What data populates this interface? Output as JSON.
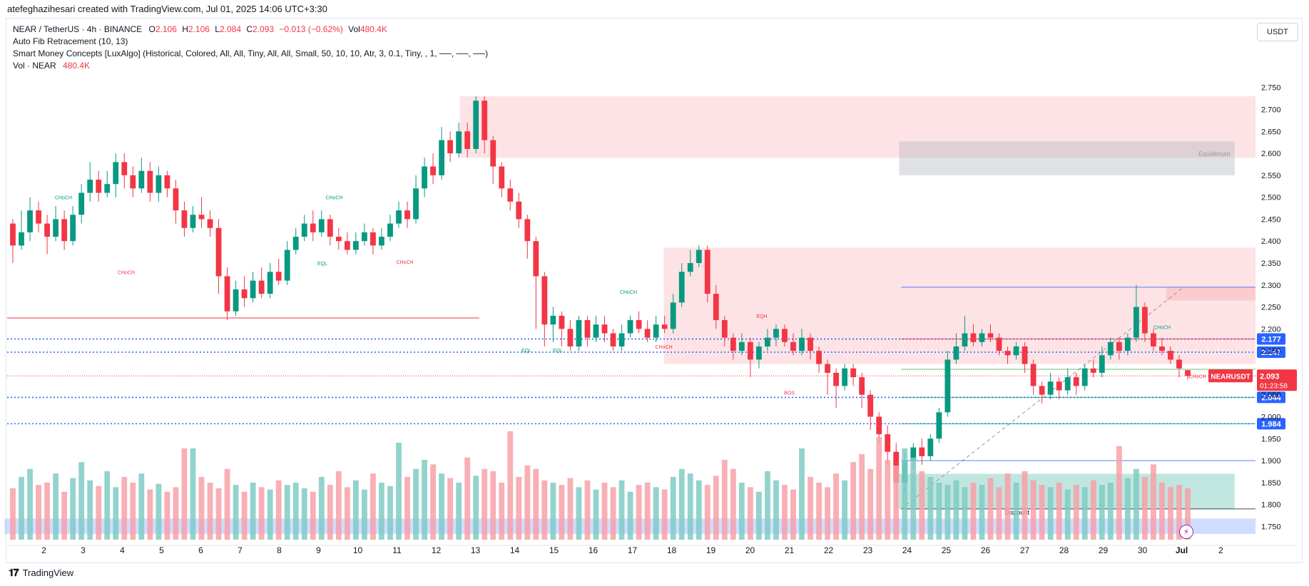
{
  "header": {
    "title": "atefeghazihesari created with TradingView.com, Jul 01, 2025 14:06 UTC+3:30"
  },
  "legend": {
    "symbol_line": "NEAR / TetherUS · 4h · BINANCE",
    "o_label": "O",
    "o_value": "2.106",
    "h_label": "H",
    "h_value": "2.106",
    "l_label": "L",
    "l_value": "2.084",
    "c_label": "C",
    "c_value": "2.093",
    "change": "−0.013 (−0.62%)",
    "vol_label": "Vol",
    "vol_value": "480.4K",
    "fib": "Auto Fib Retracement (10, 13)",
    "smc": "Smart Money Concepts [LuxAlgo] (Historical, Colored, All, All, Tiny, All, All, Small, 50, 10, 10, Atr, 3, 0.1, Tiny, , 1, ──, ──, ──)",
    "vol_line": "Vol · NEAR",
    "vol_line_value": "480.4K"
  },
  "currency": "USDT",
  "branding": "TradingView",
  "colors": {
    "up": "#089981",
    "down": "#f23645",
    "up_vol": "#80cbc4",
    "down_vol": "#f7a1a8",
    "fib_blue": "#2962ff"
  },
  "chart_data": {
    "type": "candlestick",
    "symbol": "NEARUSDT",
    "timeframe": "4h",
    "y_ticks": [
      2.75,
      2.7,
      2.65,
      2.6,
      2.55,
      2.5,
      2.45,
      2.4,
      2.35,
      2.3,
      2.25,
      2.2,
      2.15,
      2.1,
      2.05,
      2.0,
      1.95,
      1.9,
      1.85,
      1.8,
      1.75
    ],
    "y_tick_labels": [
      "2.750",
      "2.700",
      "2.650",
      "2.600",
      "2.550",
      "2.500",
      "2.450",
      "2.400",
      "2.350",
      "2.300",
      "2.250",
      "2.200",
      "2.150",
      "2.100",
      "2.050",
      "2.000",
      "1.950",
      "1.900",
      "1.850",
      "1.800",
      "1.750"
    ],
    "ylim": [
      1.715,
      2.795
    ],
    "x_labels": [
      "2",
      "3",
      "4",
      "5",
      "6",
      "7",
      "8",
      "9",
      "10",
      "11",
      "12",
      "13",
      "14",
      "15",
      "16",
      "17",
      "18",
      "19",
      "20",
      "21",
      "22",
      "23",
      "24",
      "25",
      "26",
      "27",
      "28",
      "29",
      "30",
      "Jul",
      "2"
    ],
    "price_marks": [
      {
        "value": 2.177,
        "label": "2.177",
        "color": "#2962ff"
      },
      {
        "value": 2.147,
        "label": "2.147",
        "color": "#2962ff"
      },
      {
        "value": 2.044,
        "label": "2.044",
        "color": "#2962ff"
      },
      {
        "value": 1.984,
        "label": "1.984",
        "color": "#2962ff"
      }
    ],
    "last_price": {
      "value": 2.093,
      "label": "2.093",
      "countdown": "01:23:58",
      "symbol_tag": "NEARUSDT"
    },
    "zone_labels": {
      "equilibrium": "Equilibrium",
      "discount": "Discount"
    },
    "structure_labels": [
      {
        "text": "CHoCH",
        "color": "#089981",
        "day": 1.5,
        "price": 2.495
      },
      {
        "text": "CHoCH",
        "color": "#f23645",
        "day": 3.1,
        "price": 2.325
      },
      {
        "text": "CHoCH",
        "color": "#089981",
        "day": 8.4,
        "price": 2.495
      },
      {
        "text": "EQL",
        "color": "#089981",
        "day": 8.1,
        "price": 2.345
      },
      {
        "text": "CHoCH",
        "color": "#f23645",
        "day": 10.2,
        "price": 2.348
      },
      {
        "text": "CHoCH",
        "color": "#089981",
        "day": 15.9,
        "price": 2.28
      },
      {
        "text": "EQL",
        "color": "#089981",
        "day": 13.3,
        "price": 2.147
      },
      {
        "text": "EQL",
        "color": "#089981",
        "day": 14.1,
        "price": 2.147
      },
      {
        "text": "CHoCH",
        "color": "#f23645",
        "day": 16.8,
        "price": 2.155
      },
      {
        "text": "EQH",
        "color": "#f23645",
        "day": 19.3,
        "price": 2.225
      },
      {
        "text": "BOS",
        "color": "#f23645",
        "day": 20.0,
        "price": 2.05
      },
      {
        "text": "CHoCH",
        "color": "#089981",
        "day": 29.5,
        "price": 2.2
      },
      {
        "text": "CHoCH",
        "color": "#f23645",
        "day": 30.4,
        "price": 2.088
      }
    ],
    "candles": [
      [
        2.44,
        2.39,
        2.45,
        2.35
      ],
      [
        2.39,
        2.42,
        2.47,
        2.38
      ],
      [
        2.42,
        2.47,
        2.5,
        2.4
      ],
      [
        2.47,
        2.44,
        2.49,
        2.42
      ],
      [
        2.44,
        2.41,
        2.46,
        2.37
      ],
      [
        2.41,
        2.45,
        2.48,
        2.4
      ],
      [
        2.45,
        2.4,
        2.47,
        2.38
      ],
      [
        2.4,
        2.46,
        2.48,
        2.39
      ],
      [
        2.46,
        2.51,
        2.53,
        2.44
      ],
      [
        2.51,
        2.54,
        2.58,
        2.49
      ],
      [
        2.54,
        2.51,
        2.56,
        2.49
      ],
      [
        2.51,
        2.53,
        2.56,
        2.5
      ],
      [
        2.53,
        2.58,
        2.6,
        2.5
      ],
      [
        2.58,
        2.55,
        2.6,
        2.52
      ],
      [
        2.55,
        2.52,
        2.57,
        2.5
      ],
      [
        2.52,
        2.56,
        2.59,
        2.51
      ],
      [
        2.56,
        2.51,
        2.58,
        2.49
      ],
      [
        2.51,
        2.55,
        2.57,
        2.49
      ],
      [
        2.55,
        2.52,
        2.56,
        2.5
      ],
      [
        2.52,
        2.47,
        2.54,
        2.44
      ],
      [
        2.47,
        2.43,
        2.49,
        2.41
      ],
      [
        2.43,
        2.46,
        2.48,
        2.42
      ],
      [
        2.46,
        2.45,
        2.5,
        2.43
      ],
      [
        2.45,
        2.43,
        2.47,
        2.41
      ],
      [
        2.43,
        2.32,
        2.45,
        2.28
      ],
      [
        2.32,
        2.24,
        2.34,
        2.22
      ],
      [
        2.24,
        2.29,
        2.31,
        2.23
      ],
      [
        2.29,
        2.27,
        2.32,
        2.25
      ],
      [
        2.27,
        2.31,
        2.33,
        2.26
      ],
      [
        2.31,
        2.28,
        2.34,
        2.27
      ],
      [
        2.28,
        2.33,
        2.35,
        2.27
      ],
      [
        2.33,
        2.31,
        2.36,
        2.3
      ],
      [
        2.31,
        2.38,
        2.4,
        2.3
      ],
      [
        2.38,
        2.41,
        2.43,
        2.37
      ],
      [
        2.41,
        2.44,
        2.46,
        2.4
      ],
      [
        2.44,
        2.42,
        2.47,
        2.4
      ],
      [
        2.42,
        2.45,
        2.47,
        2.41
      ],
      [
        2.45,
        2.41,
        2.46,
        2.39
      ],
      [
        2.41,
        2.4,
        2.43,
        2.38
      ],
      [
        2.4,
        2.38,
        2.42,
        2.37
      ],
      [
        2.38,
        2.4,
        2.42,
        2.37
      ],
      [
        2.4,
        2.42,
        2.44,
        2.39
      ],
      [
        2.42,
        2.39,
        2.43,
        2.37
      ],
      [
        2.39,
        2.41,
        2.43,
        2.38
      ],
      [
        2.41,
        2.44,
        2.46,
        2.4
      ],
      [
        2.44,
        2.47,
        2.49,
        2.43
      ],
      [
        2.47,
        2.45,
        2.49,
        2.43
      ],
      [
        2.45,
        2.52,
        2.55,
        2.44
      ],
      [
        2.52,
        2.57,
        2.59,
        2.5
      ],
      [
        2.57,
        2.55,
        2.6,
        2.53
      ],
      [
        2.55,
        2.63,
        2.66,
        2.54
      ],
      [
        2.63,
        2.6,
        2.65,
        2.58
      ],
      [
        2.6,
        2.65,
        2.67,
        2.59
      ],
      [
        2.65,
        2.61,
        2.67,
        2.59
      ],
      [
        2.61,
        2.72,
        2.73,
        2.6
      ],
      [
        2.72,
        2.63,
        2.73,
        2.6
      ],
      [
        2.63,
        2.57,
        2.64,
        2.53
      ],
      [
        2.57,
        2.52,
        2.58,
        2.5
      ],
      [
        2.52,
        2.49,
        2.54,
        2.47
      ],
      [
        2.49,
        2.45,
        2.51,
        2.43
      ],
      [
        2.45,
        2.4,
        2.46,
        2.36
      ],
      [
        2.4,
        2.32,
        2.41,
        2.2
      ],
      [
        2.32,
        2.21,
        2.33,
        2.16
      ],
      [
        2.21,
        2.23,
        2.25,
        2.17
      ],
      [
        2.23,
        2.2,
        2.24,
        2.16
      ],
      [
        2.2,
        2.16,
        2.22,
        2.15
      ],
      [
        2.16,
        2.22,
        2.23,
        2.15
      ],
      [
        2.22,
        2.18,
        2.23,
        2.16
      ],
      [
        2.18,
        2.21,
        2.23,
        2.17
      ],
      [
        2.21,
        2.19,
        2.23,
        2.17
      ],
      [
        2.19,
        2.16,
        2.2,
        2.15
      ],
      [
        2.16,
        2.19,
        2.21,
        2.15
      ],
      [
        2.19,
        2.22,
        2.23,
        2.18
      ],
      [
        2.22,
        2.2,
        2.24,
        2.19
      ],
      [
        2.2,
        2.18,
        2.22,
        2.17
      ],
      [
        2.18,
        2.21,
        2.23,
        2.17
      ],
      [
        2.21,
        2.2,
        2.23,
        2.19
      ],
      [
        2.2,
        2.26,
        2.28,
        2.19
      ],
      [
        2.26,
        2.33,
        2.35,
        2.25
      ],
      [
        2.33,
        2.35,
        2.38,
        2.32
      ],
      [
        2.35,
        2.38,
        2.39,
        2.34
      ],
      [
        2.38,
        2.28,
        2.39,
        2.26
      ],
      [
        2.28,
        2.22,
        2.3,
        2.2
      ],
      [
        2.22,
        2.18,
        2.23,
        2.16
      ],
      [
        2.18,
        2.15,
        2.19,
        2.13
      ],
      [
        2.15,
        2.17,
        2.19,
        2.14
      ],
      [
        2.17,
        2.13,
        2.18,
        2.09
      ],
      [
        2.13,
        2.16,
        2.17,
        2.11
      ],
      [
        2.16,
        2.18,
        2.2,
        2.15
      ],
      [
        2.18,
        2.2,
        2.21,
        2.16
      ],
      [
        2.2,
        2.17,
        2.21,
        2.16
      ],
      [
        2.17,
        2.15,
        2.19,
        2.14
      ],
      [
        2.15,
        2.18,
        2.2,
        2.14
      ],
      [
        2.18,
        2.15,
        2.19,
        2.13
      ],
      [
        2.15,
        2.12,
        2.16,
        2.1
      ],
      [
        2.12,
        2.1,
        2.13,
        2.05
      ],
      [
        2.1,
        2.07,
        2.11,
        2.02
      ],
      [
        2.07,
        2.11,
        2.12,
        2.06
      ],
      [
        2.11,
        2.09,
        2.12,
        2.07
      ],
      [
        2.09,
        2.05,
        2.1,
        2.02
      ],
      [
        2.05,
        2.0,
        2.06,
        1.97
      ],
      [
        2.0,
        1.96,
        2.01,
        1.94
      ],
      [
        1.96,
        1.92,
        1.98,
        1.89
      ],
      [
        1.92,
        1.85,
        1.94,
        1.79
      ],
      [
        1.85,
        1.9,
        1.92,
        1.83
      ],
      [
        1.9,
        1.93,
        1.94,
        1.88
      ],
      [
        1.93,
        1.91,
        1.95,
        1.89
      ],
      [
        1.91,
        1.95,
        1.96,
        1.9
      ],
      [
        1.95,
        2.01,
        2.02,
        1.94
      ],
      [
        2.01,
        2.13,
        2.15,
        2.0
      ],
      [
        2.13,
        2.16,
        2.19,
        2.12
      ],
      [
        2.16,
        2.19,
        2.23,
        2.15
      ],
      [
        2.19,
        2.17,
        2.21,
        2.16
      ],
      [
        2.17,
        2.19,
        2.2,
        2.16
      ],
      [
        2.19,
        2.18,
        2.21,
        2.17
      ],
      [
        2.18,
        2.15,
        2.19,
        2.14
      ],
      [
        2.15,
        2.14,
        2.16,
        2.12
      ],
      [
        2.14,
        2.16,
        2.17,
        2.13
      ],
      [
        2.16,
        2.12,
        2.17,
        2.1
      ],
      [
        2.12,
        2.07,
        2.13,
        2.05
      ],
      [
        2.07,
        2.05,
        2.08,
        2.03
      ],
      [
        2.05,
        2.08,
        2.1,
        2.04
      ],
      [
        2.08,
        2.06,
        2.09,
        2.04
      ],
      [
        2.06,
        2.09,
        2.11,
        2.05
      ],
      [
        2.09,
        2.07,
        2.1,
        2.05
      ],
      [
        2.07,
        2.11,
        2.12,
        2.06
      ],
      [
        2.11,
        2.1,
        2.13,
        2.09
      ],
      [
        2.1,
        2.14,
        2.16,
        2.09
      ],
      [
        2.14,
        2.17,
        2.18,
        2.13
      ],
      [
        2.17,
        2.15,
        2.18,
        2.13
      ],
      [
        2.15,
        2.18,
        2.19,
        2.14
      ],
      [
        2.18,
        2.25,
        2.3,
        2.17
      ],
      [
        2.25,
        2.19,
        2.26,
        2.17
      ],
      [
        2.19,
        2.16,
        2.2,
        2.15
      ],
      [
        2.16,
        2.15,
        2.18,
        2.14
      ],
      [
        2.15,
        2.13,
        2.16,
        2.12
      ],
      [
        2.13,
        2.11,
        2.14,
        2.09
      ],
      [
        2.106,
        2.093,
        2.106,
        2.084
      ]
    ],
    "volumes": [
      0.45,
      0.55,
      0.62,
      0.48,
      0.5,
      0.58,
      0.42,
      0.54,
      0.68,
      0.52,
      0.47,
      0.6,
      0.46,
      0.55,
      0.5,
      0.58,
      0.44,
      0.49,
      0.42,
      0.46,
      0.8,
      0.8,
      0.55,
      0.5,
      0.45,
      0.62,
      0.48,
      0.42,
      0.5,
      0.46,
      0.44,
      0.52,
      0.48,
      0.5,
      0.45,
      0.42,
      0.55,
      0.48,
      0.6,
      0.46,
      0.52,
      0.44,
      0.58,
      0.5,
      0.47,
      0.85,
      0.55,
      0.62,
      0.7,
      0.66,
      0.58,
      0.54,
      0.5,
      0.72,
      0.56,
      0.62,
      0.6,
      0.5,
      0.95,
      0.55,
      0.65,
      0.62,
      0.52,
      0.5,
      0.48,
      0.54,
      0.46,
      0.52,
      0.44,
      0.5,
      0.46,
      0.52,
      0.42,
      0.48,
      0.5,
      0.46,
      0.44,
      0.55,
      0.62,
      0.58,
      0.52,
      0.48,
      0.56,
      0.7,
      0.62,
      0.5,
      0.46,
      0.42,
      0.6,
      0.52,
      0.48,
      0.44,
      0.8,
      0.55,
      0.5,
      0.46,
      0.58,
      0.52,
      0.68,
      0.75,
      0.62,
      0.9,
      0.7,
      0.65,
      0.8,
      0.72,
      0.6,
      0.55,
      0.5,
      0.48,
      0.52,
      0.46,
      0.5,
      0.48,
      0.54,
      0.46,
      0.58,
      0.5,
      0.6,
      0.52,
      0.48,
      0.46,
      0.5,
      0.44,
      0.48,
      0.46,
      0.52,
      0.48,
      0.5,
      0.82,
      0.54,
      0.62,
      0.55,
      0.66,
      0.5,
      0.46,
      0.48,
      0.45
    ],
    "zones": [
      {
        "kind": "supply",
        "x1": 11.6,
        "x2": 32.0,
        "p_top": 2.73,
        "p_bot": 2.59,
        "color": "#f23645",
        "opacity": 0.14
      },
      {
        "kind": "equilibrium",
        "x1": 22.8,
        "x2": 31.35,
        "p_top": 2.627,
        "p_bot": 2.55,
        "color": "#b2b5be",
        "opacity": 0.4
      },
      {
        "kind": "supply",
        "x1": 16.8,
        "x2": 32.0,
        "p_top": 2.385,
        "p_bot": 2.12,
        "color": "#f23645",
        "opacity": 0.14
      },
      {
        "kind": "supply_inner",
        "x1": 29.6,
        "x2": 32.0,
        "p_top": 2.295,
        "p_bot": 2.265,
        "color": "#f23645",
        "opacity": 0.14
      },
      {
        "kind": "discount",
        "x1": 22.8,
        "x2": 31.35,
        "p_top": 1.87,
        "p_bot": 1.79,
        "color": "#089981",
        "opacity": 0.25
      },
      {
        "kind": "discount_band",
        "x1": 0.0,
        "x2": 32.0,
        "p_top": 1.768,
        "p_bot": 1.733,
        "color": "#2962ff",
        "opacity": 0.22
      }
    ]
  }
}
